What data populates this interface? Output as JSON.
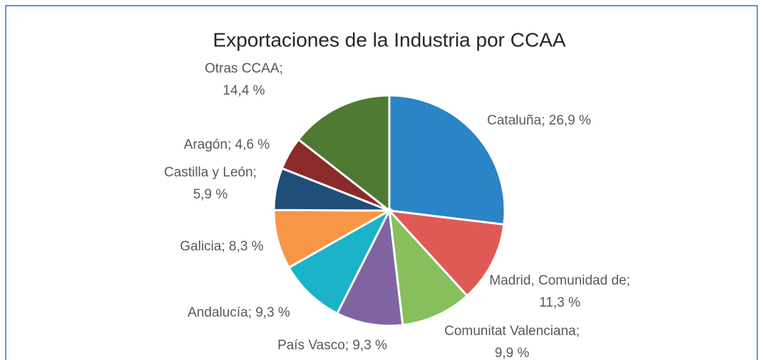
{
  "chart_data": {
    "type": "pie",
    "title": "Exportaciones de la Industria por CCAA",
    "categories": [
      "Cataluña",
      "Madrid, Comunidad de",
      "Comunitat Valenciana",
      "País Vasco",
      "Andalucía",
      "Galicia",
      "Castilla y León",
      "Aragón",
      "Otras CCAA"
    ],
    "values": [
      26.9,
      11.3,
      9.9,
      9.3,
      9.3,
      8.3,
      5.9,
      4.6,
      14.4
    ],
    "value_labels": [
      "26,9 %",
      "11,3 %",
      "9,9 %",
      "9,3 %",
      "9,3 %",
      "8,3 %",
      "5,9 %",
      "4,6 %",
      "14,4 %"
    ],
    "colors": [
      "#2a84c6",
      "#e05a55",
      "#86bf5b",
      "#8064a2",
      "#1ab3c9",
      "#f79646",
      "#1f4e79",
      "#8b2a2a",
      "#4f7a32"
    ]
  }
}
